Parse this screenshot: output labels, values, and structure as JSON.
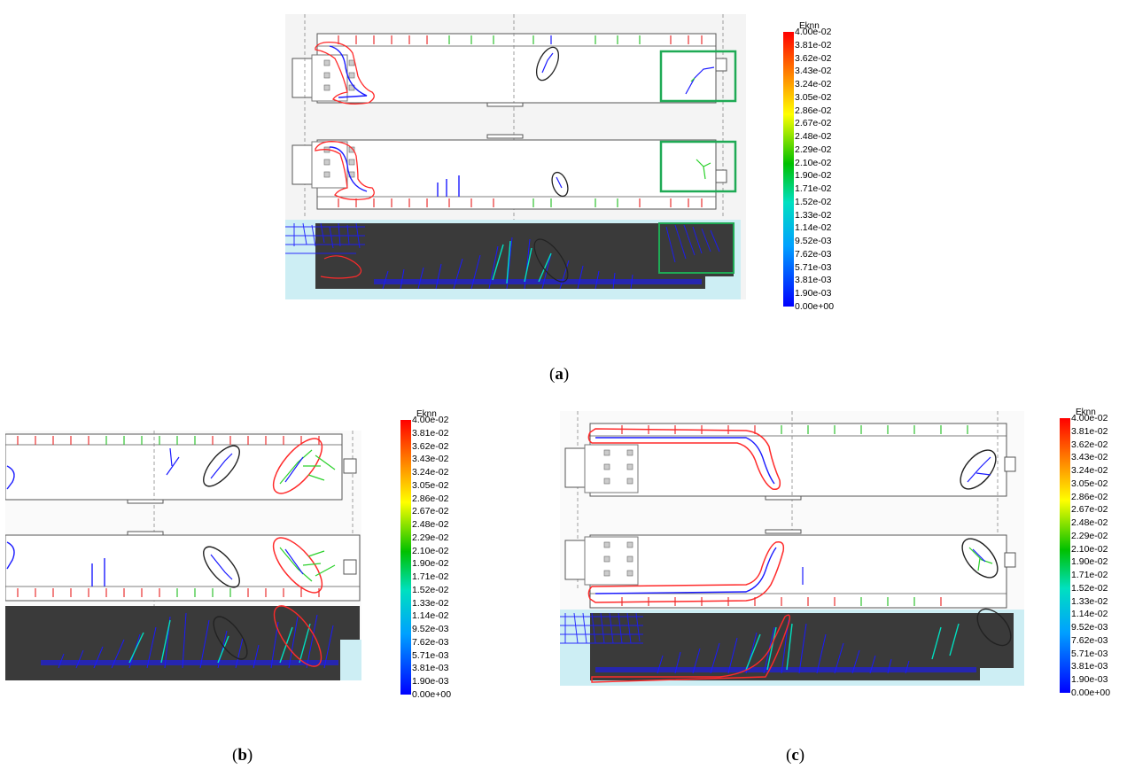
{
  "panels": [
    {
      "id": "a",
      "caption_open": "(",
      "caption_letter": "a",
      "caption_close": ")"
    },
    {
      "id": "b",
      "caption_open": "(",
      "caption_letter": "b",
      "caption_close": ")"
    },
    {
      "id": "c",
      "caption_open": "(",
      "caption_letter": "c",
      "caption_close": ")"
    }
  ],
  "legend": {
    "title": "Eknn",
    "ticks": [
      "4.00e-02",
      "3.81e-02",
      "3.62e-02",
      "3.43e-02",
      "3.24e-02",
      "3.05e-02",
      "2.86e-02",
      "2.67e-02",
      "2.48e-02",
      "2.29e-02",
      "2.10e-02",
      "1.90e-02",
      "1.71e-02",
      "1.52e-02",
      "1.33e-02",
      "1.14e-02",
      "9.52e-03",
      "7.62e-03",
      "5.71e-03",
      "3.81e-03",
      "1.90e-03",
      "0.00e+00"
    ],
    "colors": [
      "#ff0000",
      "#ff8000",
      "#ffff00",
      "#00c000",
      "#00e0c0",
      "#00a0ff",
      "#0000ff"
    ]
  },
  "colors": {
    "beam_outline": "#555555",
    "beam_fill": "#ffffff",
    "concrete_dark": "#3a3a3a",
    "cyan_base": "#cdeef4",
    "crack_blue": "#1a1aff",
    "crack_green": "#2bd12b",
    "highlight_red": "#ff2a2a",
    "highlight_black": "#222222",
    "highlight_green": "#1faa55"
  }
}
